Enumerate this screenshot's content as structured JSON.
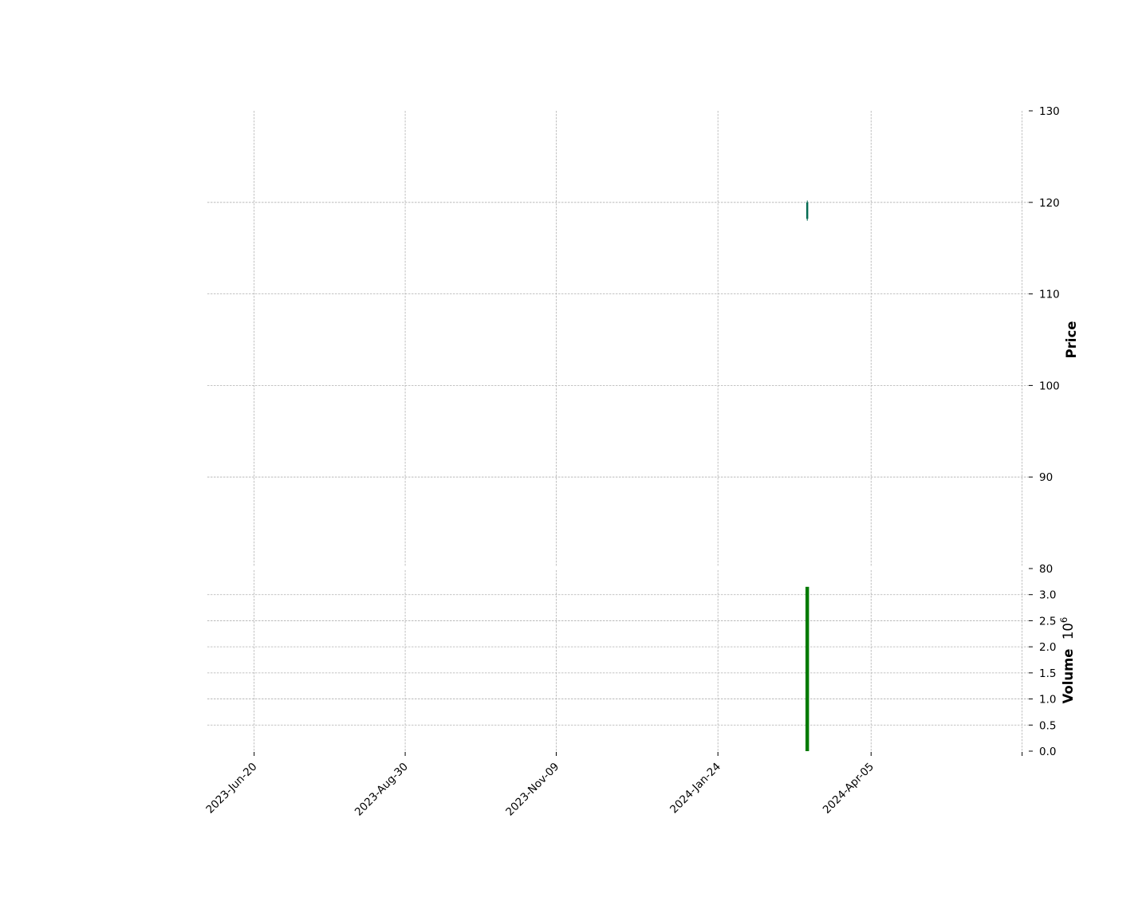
{
  "chart_data": [
    {
      "type": "candlestick",
      "panel": "price",
      "ylabel": "Price",
      "ylim": [
        80,
        130
      ],
      "yticks": [
        80,
        90,
        100,
        110,
        120,
        130
      ],
      "y_axis_side": "right",
      "grid": true,
      "candles": [
        {
          "date": "2024-Mar-06",
          "open": 118.2,
          "high": 120.2,
          "low": 118.0,
          "close": 120.0
        }
      ],
      "colors": {
        "candle": "#00694f"
      }
    },
    {
      "type": "bar",
      "panel": "volume",
      "ylabel": "Volume",
      "scale_base": "10",
      "scale_exponent": "6",
      "ylim": [
        0,
        3.5
      ],
      "yticks": [
        "0.0",
        "0.5",
        "1.0",
        "1.5",
        "2.0",
        "2.5",
        "3.0"
      ],
      "y_axis_side": "right",
      "grid": true,
      "bars": [
        {
          "date": "2024-Mar-06",
          "value": 3.15
        }
      ],
      "colors": {
        "bar": "#007a00"
      }
    }
  ],
  "x_axis": {
    "type": "date",
    "range": [
      "2023-May-29",
      "2024-Jun-20"
    ],
    "ticks": [
      {
        "date": "2023-Jun-20",
        "label": "2023-Jun-20"
      },
      {
        "date": "2023-Aug-30",
        "label": "2023-Aug-30"
      },
      {
        "date": "2023-Nov-09",
        "label": "2023-Nov-09"
      },
      {
        "date": "2024-Jan-24",
        "label": "2024-Jan-24"
      },
      {
        "date": "2024-Apr-05",
        "label": "2024-Apr-05"
      },
      {
        "date": "2024-Jun-15",
        "label": ""
      }
    ]
  }
}
